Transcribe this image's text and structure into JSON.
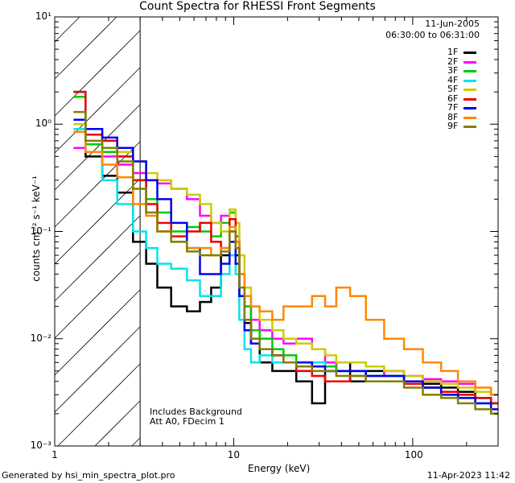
{
  "chart_data": {
    "type": "line",
    "title": "Count Spectra for RHESSI Front Segments",
    "xlabel": "Energy (keV)",
    "ylabel": "counts cm⁻² s⁻¹ keV⁻¹",
    "xscale": "log",
    "yscale": "log",
    "xlim": [
      1,
      300
    ],
    "ylim": [
      0.001,
      10
    ],
    "x_ticks": [
      {
        "value": 1,
        "label": "1"
      },
      {
        "value": 10,
        "label": "10"
      },
      {
        "value": 100,
        "label": "100"
      }
    ],
    "y_ticks": [
      {
        "value": 0.001,
        "label": "10⁻³"
      },
      {
        "value": 0.01,
        "label": "10⁻²"
      },
      {
        "value": 0.1,
        "label": "10⁻¹"
      },
      {
        "value": 1,
        "label": "10⁰"
      },
      {
        "value": 10,
        "label": "10¹"
      }
    ],
    "excluded_region_keV": [
      1,
      3
    ],
    "date": "11-Jun-2005",
    "time_range": "06:30:00 to 06:31:00",
    "annotations": [
      "Includes Background",
      "Att A0, FDecim 1"
    ],
    "energy": [
      1.3,
      1.7,
      2.0,
      2.5,
      3.0,
      3.5,
      4.0,
      5.0,
      6.0,
      7.0,
      8.0,
      9.0,
      10.0,
      10.5,
      11.0,
      12.0,
      13.0,
      15.0,
      18.0,
      20.0,
      25.0,
      30.0,
      35.0,
      40.0,
      50.0,
      60.0,
      80.0,
      100.0,
      130.0,
      160.0,
      200.0,
      250.0,
      300.0
    ],
    "series": [
      {
        "name": "1F",
        "color": "#000000",
        "values": [
          2.0,
          0.5,
          0.33,
          0.23,
          0.08,
          0.05,
          0.03,
          0.02,
          0.018,
          0.022,
          0.03,
          0.06,
          0.1,
          0.06,
          0.025,
          0.014,
          0.009,
          0.006,
          0.005,
          0.005,
          0.004,
          0.0025,
          0.005,
          0.006,
          0.004,
          0.005,
          0.0045,
          0.004,
          0.0038,
          0.0035,
          0.0032,
          0.0028,
          0.0025
        ]
      },
      {
        "name": "2F",
        "color": "#ff00ff",
        "values": [
          0.6,
          0.55,
          0.5,
          0.42,
          0.35,
          0.3,
          0.28,
          0.25,
          0.2,
          0.14,
          0.12,
          0.14,
          0.15,
          0.09,
          0.04,
          0.02,
          0.015,
          0.012,
          0.01,
          0.009,
          0.01,
          0.008,
          0.006,
          0.005,
          0.005,
          0.0045,
          0.005,
          0.0045,
          0.0042,
          0.004,
          0.0038,
          0.0032,
          0.003
        ]
      },
      {
        "name": "3F",
        "color": "#00cc00",
        "values": [
          1.8,
          0.65,
          0.55,
          0.5,
          0.3,
          0.2,
          0.15,
          0.1,
          0.11,
          0.1,
          0.09,
          0.12,
          0.15,
          0.08,
          0.04,
          0.02,
          0.012,
          0.01,
          0.008,
          0.007,
          0.006,
          0.006,
          0.0055,
          0.005,
          0.005,
          0.0045,
          0.0045,
          0.004,
          0.0035,
          0.0032,
          0.003,
          0.0028,
          0.0025
        ]
      },
      {
        "name": "4F",
        "color": "#00e5ee",
        "values": [
          0.9,
          0.55,
          0.3,
          0.18,
          0.1,
          0.07,
          0.05,
          0.045,
          0.035,
          0.025,
          0.025,
          0.04,
          0.06,
          0.04,
          0.015,
          0.008,
          0.006,
          0.007,
          0.006,
          0.006,
          0.005,
          0.006,
          0.005,
          0.005,
          0.005,
          0.0045,
          0.0045,
          0.004,
          0.0035,
          0.003,
          0.0028,
          0.0025,
          0.002
        ]
      },
      {
        "name": "5F",
        "color": "#cccc00",
        "values": [
          1.0,
          0.8,
          0.7,
          0.55,
          0.45,
          0.35,
          0.3,
          0.25,
          0.22,
          0.18,
          0.12,
          0.1,
          0.16,
          0.12,
          0.06,
          0.03,
          0.02,
          0.015,
          0.012,
          0.01,
          0.009,
          0.008,
          0.007,
          0.006,
          0.006,
          0.0055,
          0.005,
          0.0045,
          0.004,
          0.0038,
          0.0035,
          0.0032,
          0.003
        ]
      },
      {
        "name": "6F",
        "color": "#ee0000",
        "values": [
          2.0,
          0.8,
          0.7,
          0.5,
          0.3,
          0.18,
          0.12,
          0.09,
          0.1,
          0.12,
          0.08,
          0.07,
          0.13,
          0.08,
          0.03,
          0.015,
          0.01,
          0.008,
          0.007,
          0.006,
          0.005,
          0.0045,
          0.004,
          0.004,
          0.0045,
          0.004,
          0.004,
          0.0038,
          0.0035,
          0.0032,
          0.003,
          0.0028,
          0.0025
        ]
      },
      {
        "name": "7F",
        "color": "#0000ee",
        "values": [
          1.1,
          0.9,
          0.75,
          0.6,
          0.45,
          0.3,
          0.2,
          0.12,
          0.07,
          0.04,
          0.04,
          0.05,
          0.08,
          0.05,
          0.025,
          0.012,
          0.009,
          0.008,
          0.007,
          0.006,
          0.006,
          0.0055,
          0.005,
          0.005,
          0.005,
          0.0045,
          0.0045,
          0.004,
          0.0035,
          0.003,
          0.0028,
          0.0025,
          0.0022
        ]
      },
      {
        "name": "8F",
        "color": "#ff8800",
        "values": [
          0.85,
          0.55,
          0.42,
          0.32,
          0.18,
          0.14,
          0.1,
          0.08,
          0.07,
          0.07,
          0.06,
          0.07,
          0.11,
          0.08,
          0.04,
          0.025,
          0.02,
          0.018,
          0.015,
          0.02,
          0.02,
          0.025,
          0.02,
          0.03,
          0.025,
          0.015,
          0.01,
          0.008,
          0.006,
          0.005,
          0.004,
          0.0035,
          0.003
        ]
      },
      {
        "name": "9F",
        "color": "#808000",
        "values": [
          1.3,
          0.7,
          0.6,
          0.45,
          0.25,
          0.15,
          0.1,
          0.08,
          0.065,
          0.06,
          0.06,
          0.065,
          0.1,
          0.07,
          0.03,
          0.015,
          0.01,
          0.008,
          0.007,
          0.006,
          0.0055,
          0.005,
          0.005,
          0.0045,
          0.0045,
          0.004,
          0.004,
          0.0035,
          0.003,
          0.0028,
          0.0025,
          0.0022,
          0.002
        ]
      }
    ]
  },
  "footer": {
    "generated_by": "Generated by hsi_min_spectra_plot.pro",
    "timestamp": "11-Apr-2023 11:42"
  }
}
